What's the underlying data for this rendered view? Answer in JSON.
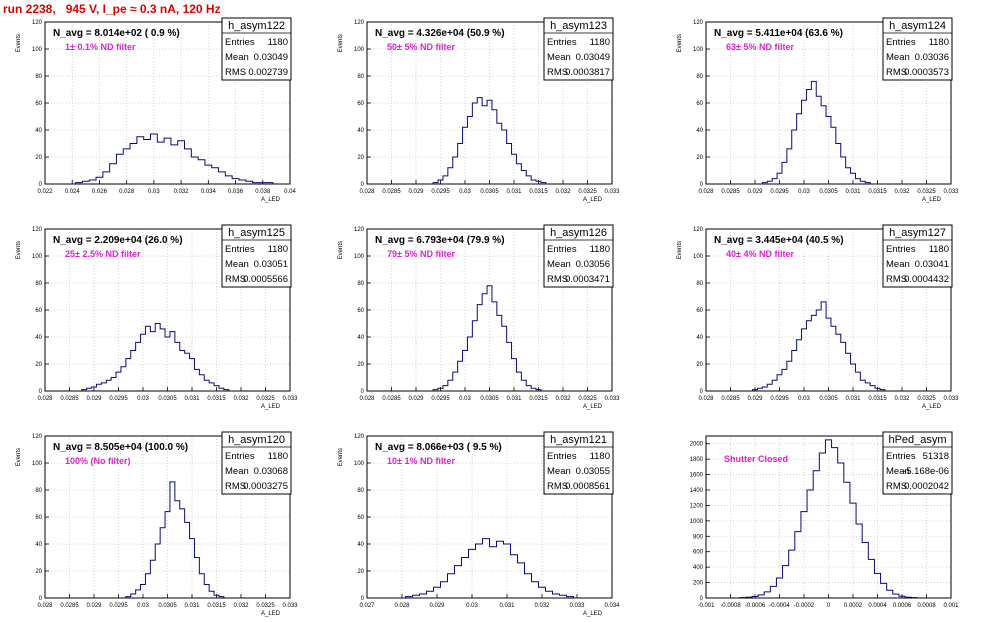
{
  "run_title": "run 2238,   945 V, I_pe ≈ 0.3 nA, 120 Hz",
  "chart_data": [
    {
      "type": "bar",
      "hist_name": "h_asym122",
      "n_label": "N_avg = 8.014e+02 ( 0.9 %)",
      "filter_label": "1± 0.1% ND filter",
      "stats": [
        [
          "Entries",
          "1180"
        ],
        [
          "Mean",
          "0.03049"
        ],
        [
          "RMS",
          "0.002739"
        ]
      ],
      "ylabel": "Events",
      "xlabel": "A_LED",
      "xlim": [
        0.022,
        0.04
      ],
      "ylim": [
        0,
        120
      ],
      "x_ticks": [
        0.022,
        0.024,
        0.026,
        0.028,
        0.03,
        0.032,
        0.034,
        0.036,
        0.038,
        0.04
      ],
      "x_tick_labels": [
        "0.022",
        "0.024",
        "0.026",
        "0.028",
        "0.03",
        "0.032",
        "0.034",
        "0.036",
        "0.038",
        "0.04"
      ],
      "y_ticks": [
        0,
        20,
        40,
        60,
        80,
        100,
        120
      ],
      "y_tick_labels": [
        "0",
        "20",
        "40",
        "60",
        "80",
        "100",
        "120"
      ],
      "x": [
        0.0245,
        0.025,
        0.0255,
        0.026,
        0.0265,
        0.027,
        0.0275,
        0.028,
        0.0285,
        0.029,
        0.0295,
        0.03,
        0.0305,
        0.031,
        0.0315,
        0.032,
        0.0325,
        0.033,
        0.0335,
        0.034,
        0.0345,
        0.035,
        0.0355,
        0.036,
        0.0365,
        0.037,
        0.0375,
        0.038,
        0.0385
      ],
      "values": [
        1,
        2,
        3,
        5,
        9,
        15,
        22,
        26,
        30,
        35,
        33,
        37,
        31,
        34,
        29,
        32,
        26,
        20,
        18,
        14,
        12,
        9,
        6,
        4,
        3,
        2,
        1,
        1,
        1
      ]
    },
    {
      "type": "bar",
      "hist_name": "h_asym123",
      "n_label": "N_avg = 4.326e+04 (50.9 %)",
      "filter_label": "50± 5% ND filter",
      "stats": [
        [
          "Entries",
          "1180"
        ],
        [
          "Mean",
          "0.03049"
        ],
        [
          "RMS",
          "0.0003817"
        ]
      ],
      "ylabel": "Events",
      "xlabel": "A_LED",
      "xlim": [
        0.028,
        0.033
      ],
      "ylim": [
        0,
        120
      ],
      "x_ticks": [
        0.028,
        0.0285,
        0.029,
        0.0295,
        0.03,
        0.0305,
        0.031,
        0.0315,
        0.032,
        0.0325,
        0.033
      ],
      "x_tick_labels": [
        "0.028",
        "0.0285",
        "0.029",
        "0.0295",
        "0.03",
        "0.0305",
        "0.031",
        "0.0315",
        "0.032",
        "0.0325",
        "0.033"
      ],
      "y_ticks": [
        0,
        20,
        40,
        60,
        80,
        100,
        120
      ],
      "y_tick_labels": [
        "0",
        "20",
        "40",
        "60",
        "80",
        "100",
        "120"
      ],
      "x": [
        0.0294,
        0.0295,
        0.0296,
        0.0297,
        0.0298,
        0.0299,
        0.03,
        0.0301,
        0.0302,
        0.0303,
        0.0304,
        0.0305,
        0.0306,
        0.0307,
        0.0308,
        0.0309,
        0.031,
        0.0311,
        0.0312,
        0.0313,
        0.0314,
        0.0315,
        0.0316
      ],
      "values": [
        1,
        3,
        6,
        12,
        20,
        30,
        42,
        50,
        60,
        64,
        58,
        62,
        55,
        45,
        40,
        30,
        22,
        15,
        10,
        6,
        3,
        2,
        1
      ]
    },
    {
      "type": "bar",
      "hist_name": "h_asym124",
      "n_label": "N_avg = 5.411e+04 (63.6 %)",
      "filter_label": "63± 5% ND filter",
      "stats": [
        [
          "Entries",
          "1180"
        ],
        [
          "Mean",
          "0.03036"
        ],
        [
          "RMS",
          "0.0003573"
        ]
      ],
      "ylabel": "Events",
      "xlabel": "A_LED",
      "xlim": [
        0.028,
        0.033
      ],
      "ylim": [
        0,
        120
      ],
      "x_ticks": [
        0.028,
        0.0285,
        0.029,
        0.0295,
        0.03,
        0.0305,
        0.031,
        0.0315,
        0.032,
        0.0325,
        0.033
      ],
      "x_tick_labels": [
        "0.028",
        "0.0285",
        "0.029",
        "0.0295",
        "0.03",
        "0.0305",
        "0.031",
        "0.0315",
        "0.032",
        "0.0325",
        "0.033"
      ],
      "y_ticks": [
        0,
        20,
        40,
        60,
        80,
        100,
        120
      ],
      "y_tick_labels": [
        "0",
        "20",
        "40",
        "60",
        "80",
        "100",
        "120"
      ],
      "x": [
        0.0292,
        0.0293,
        0.0294,
        0.0295,
        0.0296,
        0.0297,
        0.0298,
        0.0299,
        0.03,
        0.0301,
        0.0302,
        0.0303,
        0.0304,
        0.0305,
        0.0306,
        0.0307,
        0.0308,
        0.0309,
        0.031,
        0.0311,
        0.0312,
        0.0313
      ],
      "values": [
        1,
        2,
        4,
        8,
        16,
        26,
        40,
        52,
        62,
        70,
        76,
        65,
        58,
        50,
        42,
        30,
        20,
        12,
        8,
        4,
        2,
        1
      ]
    },
    {
      "type": "bar",
      "hist_name": "h_asym125",
      "n_label": "N_avg = 2.209e+04 (26.0 %)",
      "filter_label": "25± 2.5% ND filter",
      "stats": [
        [
          "Entries",
          "1180"
        ],
        [
          "Mean",
          "0.03051"
        ],
        [
          "RMS",
          "0.0005566"
        ]
      ],
      "ylabel": "Events",
      "xlabel": "A_LED",
      "xlim": [
        0.028,
        0.033
      ],
      "ylim": [
        0,
        120
      ],
      "x_ticks": [
        0.028,
        0.0285,
        0.029,
        0.0295,
        0.03,
        0.0305,
        0.031,
        0.0315,
        0.032,
        0.0325,
        0.033
      ],
      "x_tick_labels": [
        "0.028",
        "0.0285",
        "0.029",
        "0.0295",
        "0.03",
        "0.0305",
        "0.031",
        "0.0315",
        "0.032",
        "0.0325",
        "0.033"
      ],
      "y_ticks": [
        0,
        20,
        40,
        60,
        80,
        100,
        120
      ],
      "y_tick_labels": [
        "0",
        "20",
        "40",
        "60",
        "80",
        "100",
        "120"
      ],
      "x": [
        0.0288,
        0.0289,
        0.029,
        0.0291,
        0.0292,
        0.0293,
        0.0294,
        0.0295,
        0.0296,
        0.0297,
        0.0298,
        0.0299,
        0.03,
        0.0301,
        0.0302,
        0.0303,
        0.0304,
        0.0305,
        0.0306,
        0.0307,
        0.0308,
        0.0309,
        0.031,
        0.0311,
        0.0312,
        0.0313,
        0.0314,
        0.0315,
        0.0316,
        0.0317
      ],
      "values": [
        1,
        2,
        3,
        5,
        6,
        8,
        10,
        14,
        18,
        24,
        30,
        36,
        42,
        48,
        44,
        50,
        46,
        40,
        44,
        36,
        30,
        28,
        24,
        16,
        12,
        8,
        6,
        4,
        2,
        1
      ]
    },
    {
      "type": "bar",
      "hist_name": "h_asym126",
      "n_label": "N_avg = 6.793e+04 (79.9 %)",
      "filter_label": "79± 5% ND filter",
      "stats": [
        [
          "Entries",
          "1180"
        ],
        [
          "Mean",
          "0.03056"
        ],
        [
          "RMS",
          "0.0003471"
        ]
      ],
      "ylabel": "Events",
      "xlabel": "A_LED",
      "xlim": [
        0.028,
        0.033
      ],
      "ylim": [
        0,
        120
      ],
      "x_ticks": [
        0.028,
        0.0285,
        0.029,
        0.0295,
        0.03,
        0.0305,
        0.031,
        0.0315,
        0.032,
        0.0325,
        0.033
      ],
      "x_tick_labels": [
        "0.028",
        "0.0285",
        "0.029",
        "0.0295",
        "0.03",
        "0.0305",
        "0.031",
        "0.0315",
        "0.032",
        "0.0325",
        "0.033"
      ],
      "y_ticks": [
        0,
        20,
        40,
        60,
        80,
        100,
        120
      ],
      "y_tick_labels": [
        "0",
        "20",
        "40",
        "60",
        "80",
        "100",
        "120"
      ],
      "x": [
        0.0294,
        0.0295,
        0.0296,
        0.0297,
        0.0298,
        0.0299,
        0.03,
        0.0301,
        0.0302,
        0.0303,
        0.0304,
        0.0305,
        0.0306,
        0.0307,
        0.0308,
        0.0309,
        0.031,
        0.0311,
        0.0312,
        0.0313,
        0.0314,
        0.0315
      ],
      "values": [
        1,
        2,
        4,
        8,
        14,
        22,
        30,
        40,
        52,
        64,
        72,
        78,
        66,
        56,
        48,
        36,
        24,
        14,
        8,
        4,
        2,
        1
      ]
    },
    {
      "type": "bar",
      "hist_name": "h_asym127",
      "n_label": "N_avg = 3.445e+04 (40.5 %)",
      "filter_label": "40± 4% ND filter",
      "stats": [
        [
          "Entries",
          "1180"
        ],
        [
          "Mean",
          "0.03041"
        ],
        [
          "RMS",
          "0.0004432"
        ]
      ],
      "ylabel": "Events",
      "xlabel": "A_LED",
      "xlim": [
        0.028,
        0.033
      ],
      "ylim": [
        0,
        120
      ],
      "x_ticks": [
        0.028,
        0.0285,
        0.029,
        0.0295,
        0.03,
        0.0305,
        0.031,
        0.0315,
        0.032,
        0.0325,
        0.033
      ],
      "x_tick_labels": [
        "0.028",
        "0.0285",
        "0.029",
        "0.0295",
        "0.03",
        "0.0305",
        "0.031",
        "0.0315",
        "0.032",
        "0.0325",
        "0.033"
      ],
      "y_ticks": [
        0,
        20,
        40,
        60,
        80,
        100,
        120
      ],
      "y_tick_labels": [
        "0",
        "20",
        "40",
        "60",
        "80",
        "100",
        "120"
      ],
      "x": [
        0.029,
        0.0291,
        0.0292,
        0.0293,
        0.0294,
        0.0295,
        0.0296,
        0.0297,
        0.0298,
        0.0299,
        0.03,
        0.0301,
        0.0302,
        0.0303,
        0.0304,
        0.0305,
        0.0306,
        0.0307,
        0.0308,
        0.0309,
        0.031,
        0.0311,
        0.0312,
        0.0313,
        0.0314,
        0.0315,
        0.0316
      ],
      "values": [
        1,
        2,
        3,
        5,
        8,
        12,
        16,
        22,
        30,
        38,
        46,
        52,
        56,
        60,
        66,
        54,
        48,
        42,
        36,
        28,
        20,
        14,
        8,
        6,
        4,
        2,
        1
      ]
    },
    {
      "type": "bar",
      "hist_name": "h_asym120",
      "n_label": "N_avg = 8.505e+04 (100.0 %)",
      "filter_label": "100% (No filter)",
      "stats": [
        [
          "Entries",
          "1180"
        ],
        [
          "Mean",
          "0.03068"
        ],
        [
          "RMS",
          "0.0003275"
        ]
      ],
      "ylabel": "Events",
      "xlabel": "A_LED",
      "xlim": [
        0.028,
        0.033
      ],
      "ylim": [
        0,
        120
      ],
      "x_ticks": [
        0.028,
        0.0285,
        0.029,
        0.0295,
        0.03,
        0.0305,
        0.031,
        0.0315,
        0.032,
        0.0325,
        0.033
      ],
      "x_tick_labels": [
        "0.028",
        "0.0285",
        "0.029",
        "0.0295",
        "0.03",
        "0.0305",
        "0.031",
        "0.0315",
        "0.032",
        "0.0325",
        "0.033"
      ],
      "y_ticks": [
        0,
        20,
        40,
        60,
        80,
        100,
        120
      ],
      "y_tick_labels": [
        "0",
        "20",
        "40",
        "60",
        "80",
        "100",
        "120"
      ],
      "x": [
        0.0297,
        0.0298,
        0.0299,
        0.03,
        0.0301,
        0.0302,
        0.0303,
        0.0304,
        0.0305,
        0.0306,
        0.0307,
        0.0308,
        0.0309,
        0.031,
        0.0311,
        0.0312,
        0.0313,
        0.0314,
        0.0315,
        0.0316
      ],
      "values": [
        1,
        3,
        6,
        10,
        18,
        28,
        40,
        52,
        64,
        86,
        72,
        66,
        56,
        44,
        30,
        18,
        10,
        5,
        2,
        1
      ]
    },
    {
      "type": "bar",
      "hist_name": "h_asym121",
      "n_label": "N_avg = 8.066e+03 ( 9.5 %)",
      "filter_label": "10± 1% ND filter",
      "stats": [
        [
          "Entries",
          "1180"
        ],
        [
          "Mean",
          "0.03055"
        ],
        [
          "RMS",
          "0.0008561"
        ]
      ],
      "ylabel": "Events",
      "xlabel": "A_LED",
      "xlim": [
        0.027,
        0.034
      ],
      "ylim": [
        0,
        120
      ],
      "x_ticks": [
        0.027,
        0.028,
        0.029,
        0.03,
        0.031,
        0.032,
        0.033,
        0.034
      ],
      "x_tick_labels": [
        "0.027",
        "0.028",
        "0.029",
        "0.03",
        "0.031",
        "0.032",
        "0.033",
        "0.034"
      ],
      "y_ticks": [
        0,
        20,
        40,
        60,
        80,
        100,
        120
      ],
      "y_tick_labels": [
        "0",
        "20",
        "40",
        "60",
        "80",
        "100",
        "120"
      ],
      "x": [
        0.0282,
        0.0284,
        0.0286,
        0.0288,
        0.029,
        0.0292,
        0.0294,
        0.0296,
        0.0298,
        0.03,
        0.0302,
        0.0304,
        0.0306,
        0.0308,
        0.031,
        0.0312,
        0.0314,
        0.0316,
        0.0318,
        0.032,
        0.0322,
        0.0324,
        0.0326,
        0.0328
      ],
      "values": [
        1,
        2,
        3,
        5,
        8,
        12,
        18,
        24,
        30,
        36,
        40,
        44,
        38,
        42,
        40,
        32,
        26,
        18,
        12,
        8,
        5,
        3,
        2,
        1
      ]
    },
    {
      "type": "bar",
      "hist_name": "hPed_asym",
      "n_label": "",
      "filter_label": "Shutter Closed",
      "stats": [
        [
          "Entries",
          "51318"
        ],
        [
          "Mean",
          "-5.168e-06"
        ],
        [
          "RMS",
          "0.0002042"
        ]
      ],
      "ylabel": "",
      "xlabel": "",
      "xlim": [
        -0.001,
        0.001
      ],
      "ylim": [
        0,
        2100
      ],
      "x_ticks": [
        -0.001,
        -0.0008,
        -0.0006,
        -0.0004,
        -0.0002,
        0,
        0.0002,
        0.0004,
        0.0006,
        0.0008,
        0.001
      ],
      "x_tick_labels": [
        "-0.001",
        "-0.0008",
        "-0.0006",
        "-0.0004",
        "-0.0002",
        "0",
        "0.0002",
        "0.0004",
        "0.0006",
        "0.0008",
        "0.001"
      ],
      "y_ticks": [
        0,
        200,
        400,
        600,
        800,
        1000,
        1200,
        1400,
        1600,
        1800,
        2000
      ],
      "y_tick_labels": [
        "0",
        "200",
        "400",
        "600",
        "800",
        "1000",
        "1200",
        "1400",
        "1600",
        "1800",
        "2000"
      ],
      "x": [
        -0.0007,
        -0.00065,
        -0.0006,
        -0.00055,
        -0.0005,
        -0.00045,
        -0.0004,
        -0.00035,
        -0.0003,
        -0.00025,
        -0.0002,
        -0.00015,
        -0.0001,
        -5e-05,
        0,
        5e-05,
        0.0001,
        0.00015,
        0.0002,
        0.00025,
        0.0003,
        0.00035,
        0.0004,
        0.00045,
        0.0005,
        0.00055,
        0.0006,
        0.00065,
        0.0007
      ],
      "values": [
        5,
        10,
        20,
        40,
        80,
        150,
        260,
        420,
        620,
        860,
        1120,
        1400,
        1650,
        1880,
        2050,
        1950,
        1750,
        1500,
        1230,
        960,
        720,
        500,
        320,
        190,
        100,
        50,
        22,
        10,
        5
      ]
    }
  ]
}
